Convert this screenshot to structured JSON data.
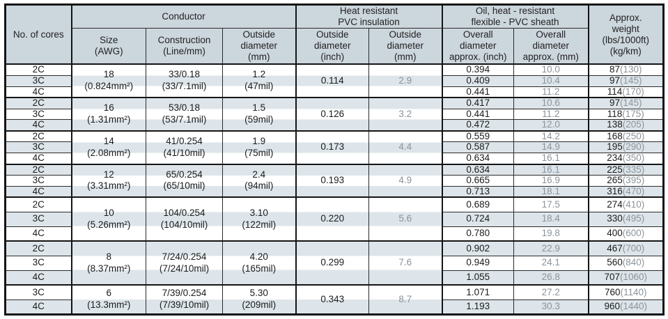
{
  "table": {
    "header": {
      "cores": "No. of cores",
      "conductor_group": "Conductor",
      "insulation_group": "Heat resistant\nPVC insulation",
      "sheath_group": "Oil, heat - resistant\nflexible - PVC sheath",
      "weight": "Approx.\nweight\n(lbs/1000ft)\n(kg/km)",
      "size": "Size\n(AWG)",
      "construction": "Construction\n(Line/mm)",
      "conductor_od": "Outside\ndiameter\n(mm)",
      "insulation_od_inch": "Outside\ndiameter\n(inch)",
      "insulation_od_mm": "Outside\ndiameter\n(mm)",
      "overall_inch": "Overall\ndiameter\napprox. (inch)",
      "overall_mm": "Overall\ndiameter\napprox. (mm)"
    },
    "colors": {
      "header_bg": "#ccd6dd",
      "row_stripe": "#dde5ea",
      "secondary_text": "#8b949b",
      "border": "#141414"
    },
    "groups": [
      {
        "size": "18\n(0.824mm²)",
        "construction": "33/0.18\n(33/7.1mil)",
        "outside_diameter": "1.2\n(47mil)",
        "insulation_inch": "0.114",
        "insulation_mm": "2.9",
        "rows": [
          {
            "cores": "2C",
            "overall_inch": "0.394",
            "overall_mm": "10.0",
            "lbs": "87",
            "kg": "(130)"
          },
          {
            "cores": "3C",
            "overall_inch": "0.409",
            "overall_mm": "10.4",
            "lbs": "97",
            "kg": "(145)"
          },
          {
            "cores": "4C",
            "overall_inch": "0.441",
            "overall_mm": "11.2",
            "lbs": "114",
            "kg": "(170)"
          }
        ]
      },
      {
        "size": "16\n(1.31mm²)",
        "construction": "53/0.18\n(53/7.1mil)",
        "outside_diameter": "1.5\n(59mil)",
        "insulation_inch": "0.126",
        "insulation_mm": "3.2",
        "rows": [
          {
            "cores": "2C",
            "overall_inch": "0.417",
            "overall_mm": "10.6",
            "lbs": "97",
            "kg": "(145)"
          },
          {
            "cores": "3C",
            "overall_inch": "0.441",
            "overall_mm": "11.2",
            "lbs": "118",
            "kg": "(175)"
          },
          {
            "cores": "4C",
            "overall_inch": "0.472",
            "overall_mm": "12.0",
            "lbs": "138",
            "kg": "(205)"
          }
        ]
      },
      {
        "size": "14\n(2.08mm²)",
        "construction": "41/0.254\n(41/10mil)",
        "outside_diameter": "1.9\n(75mil)",
        "insulation_inch": "0.173",
        "insulation_mm": "4.4",
        "rows": [
          {
            "cores": "2C",
            "overall_inch": "0.559",
            "overall_mm": "14.2",
            "lbs": "168",
            "kg": "(250)"
          },
          {
            "cores": "3C",
            "overall_inch": "0.587",
            "overall_mm": "14.9",
            "lbs": "195",
            "kg": "(290)"
          },
          {
            "cores": "4C",
            "overall_inch": "0.634",
            "overall_mm": "16.1",
            "lbs": "234",
            "kg": "(350)"
          }
        ]
      },
      {
        "size": "12\n(3.31mm²)",
        "construction": "65/0.254\n(65/10mil)",
        "outside_diameter": "2.4\n(94mil)",
        "insulation_inch": "0.193",
        "insulation_mm": "4.9",
        "rows": [
          {
            "cores": "2C",
            "overall_inch": "0.634",
            "overall_mm": "16.1",
            "lbs": "225",
            "kg": "(335)"
          },
          {
            "cores": "3C",
            "overall_inch": "0.665",
            "overall_mm": "16.9",
            "lbs": "265",
            "kg": "(395)"
          },
          {
            "cores": "4C",
            "overall_inch": "0.713",
            "overall_mm": "18.1",
            "lbs": "316",
            "kg": "(470)"
          }
        ]
      },
      {
        "size": "10\n(5.26mm²)",
        "construction": "104/0.254\n(104/10mil)",
        "outside_diameter": "3.10\n(122mil)",
        "insulation_inch": "0.220",
        "insulation_mm": "5.6",
        "rows": [
          {
            "cores": "2C",
            "overall_inch": "0.689",
            "overall_mm": "17.5",
            "lbs": "274",
            "kg": "(410)"
          },
          {
            "cores": "3C",
            "overall_inch": "0.724",
            "overall_mm": "18.4",
            "lbs": "330",
            "kg": "(495)"
          },
          {
            "cores": "4C",
            "overall_inch": "0.780",
            "overall_mm": "19.8",
            "lbs": "400",
            "kg": "(600)"
          }
        ]
      },
      {
        "size": "8\n(8.37mm²)",
        "construction": "7/24/0.254\n(7/24/10mil)",
        "outside_diameter": "4.20\n(165mil)",
        "insulation_inch": "0.299",
        "insulation_mm": "7.6",
        "rows": [
          {
            "cores": "2C",
            "overall_inch": "0.902",
            "overall_mm": "22.9",
            "lbs": "467",
            "kg": "(700)"
          },
          {
            "cores": "3C",
            "overall_inch": "0.949",
            "overall_mm": "24.1",
            "lbs": "560",
            "kg": "(840)"
          },
          {
            "cores": "4C",
            "overall_inch": "1.055",
            "overall_mm": "26.8",
            "lbs": "707",
            "kg": "(1060)"
          }
        ]
      },
      {
        "size": "6\n(13.3mm²)",
        "construction": "7/39/0.254\n(7/39/10mil)",
        "outside_diameter": "5.30\n(209mil)",
        "insulation_inch": "0.343",
        "insulation_mm": "8.7",
        "rows": [
          {
            "cores": "3C",
            "overall_inch": "1.071",
            "overall_mm": "27.2",
            "lbs": "760",
            "kg": "(1140)"
          },
          {
            "cores": "4C",
            "overall_inch": "1.193",
            "overall_mm": "30.3",
            "lbs": "960",
            "kg": "(1440)"
          }
        ]
      }
    ]
  }
}
